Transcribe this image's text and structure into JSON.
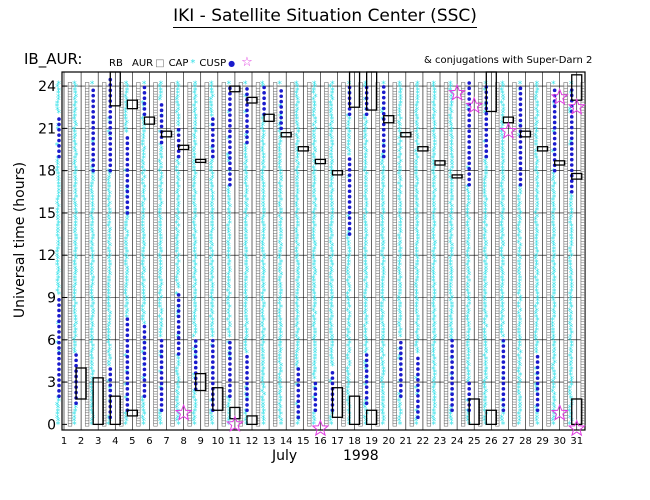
{
  "page": {
    "title": "IKI - Satellite Situation Center (SSC)",
    "panel_name": "IB_AUR:",
    "conjugation_note": "& conjugations with Super-Darn 2"
  },
  "legend": [
    {
      "label": "RB",
      "symbol": "rectangle",
      "color": "#000000"
    },
    {
      "label": "AUR",
      "symbol": "square",
      "color": "#777777"
    },
    {
      "label": "CAP",
      "symbol": "asterisk",
      "color": "#33e0e8"
    },
    {
      "label": "CUSP",
      "symbol": "dot",
      "color": "#1a1acc"
    },
    {
      "label": "",
      "symbol": "star",
      "color": "#e03ce0"
    }
  ],
  "chart_data": {
    "type": "scatter",
    "ylabel": "Universal time (hours)",
    "xlabel_month": "July",
    "xlabel_year": "1998",
    "x_ticks": [
      "1",
      "2",
      "3",
      "4",
      "5",
      "6",
      "7",
      "8",
      "9",
      "10",
      "11",
      "12",
      "13",
      "14",
      "15",
      "16",
      "17",
      "18",
      "19",
      "20",
      "21",
      "22",
      "23",
      "24",
      "25",
      "26",
      "27",
      "28",
      "29",
      "30",
      "31"
    ],
    "y_ticks": [
      0,
      3,
      6,
      9,
      12,
      15,
      18,
      21,
      24
    ],
    "xlim": [
      1,
      31.6
    ],
    "ylim": [
      -0.4,
      25
    ],
    "grid": true,
    "colors": {
      "rb": "#000000",
      "aur": "#777777",
      "cap": "#33e0e8",
      "cusp": "#1a1acc",
      "star": "#e03ce0"
    },
    "rb_intervals": [
      {
        "day": 2,
        "start": 1.8,
        "end": 4.0
      },
      {
        "day": 3,
        "start": 0.0,
        "end": 3.3
      },
      {
        "day": 4,
        "start": 0.0,
        "end": 2.0
      },
      {
        "day": 4,
        "start": 22.6,
        "end": 25.0
      },
      {
        "day": 5,
        "start": 0.6,
        "end": 1.0
      },
      {
        "day": 5,
        "start": 22.4,
        "end": 23.0
      },
      {
        "day": 6,
        "start": 21.3,
        "end": 21.8
      },
      {
        "day": 7,
        "start": 20.4,
        "end": 20.8
      },
      {
        "day": 8,
        "start": 19.5,
        "end": 19.8
      },
      {
        "day": 9,
        "start": 2.4,
        "end": 3.6
      },
      {
        "day": 9,
        "start": 18.6,
        "end": 18.8
      },
      {
        "day": 10,
        "start": 1.0,
        "end": 2.6
      },
      {
        "day": 11,
        "start": 0.4,
        "end": 1.2
      },
      {
        "day": 11,
        "start": 23.6,
        "end": 24.0
      },
      {
        "day": 12,
        "start": 0.0,
        "end": 0.6
      },
      {
        "day": 12,
        "start": 22.8,
        "end": 23.2
      },
      {
        "day": 13,
        "start": 21.5,
        "end": 22.0
      },
      {
        "day": 14,
        "start": 20.4,
        "end": 20.7
      },
      {
        "day": 15,
        "start": 19.4,
        "end": 19.7
      },
      {
        "day": 16,
        "start": 18.5,
        "end": 18.8
      },
      {
        "day": 17,
        "start": 0.5,
        "end": 2.6
      },
      {
        "day": 17,
        "start": 17.7,
        "end": 18.0
      },
      {
        "day": 18,
        "start": 0.0,
        "end": 2.0
      },
      {
        "day": 18,
        "start": 22.5,
        "end": 25.0
      },
      {
        "day": 19,
        "start": 0.0,
        "end": 1.0
      },
      {
        "day": 19,
        "start": 22.3,
        "end": 25.0
      },
      {
        "day": 20,
        "start": 21.4,
        "end": 21.9
      },
      {
        "day": 21,
        "start": 20.4,
        "end": 20.7
      },
      {
        "day": 22,
        "start": 19.4,
        "end": 19.7
      },
      {
        "day": 23,
        "start": 18.4,
        "end": 18.7
      },
      {
        "day": 24,
        "start": 17.5,
        "end": 17.7
      },
      {
        "day": 25,
        "start": 0.0,
        "end": 1.8
      },
      {
        "day": 26,
        "start": 0.0,
        "end": 1.0
      },
      {
        "day": 26,
        "start": 22.2,
        "end": 25.0
      },
      {
        "day": 27,
        "start": 21.4,
        "end": 21.8
      },
      {
        "day": 28,
        "start": 20.4,
        "end": 20.8
      },
      {
        "day": 29,
        "start": 19.4,
        "end": 19.7
      },
      {
        "day": 30,
        "start": 18.4,
        "end": 18.7
      },
      {
        "day": 31,
        "start": 0.0,
        "end": 1.8
      },
      {
        "day": 31,
        "start": 17.4,
        "end": 17.8
      },
      {
        "day": 31,
        "start": 23.0,
        "end": 24.8
      }
    ],
    "cusp_intervals": [
      {
        "day": 1,
        "start": 2.0,
        "end": 9.0
      },
      {
        "day": 1,
        "start": 19.0,
        "end": 22.0
      },
      {
        "day": 2,
        "start": 1.5,
        "end": 5.0
      },
      {
        "day": 3,
        "start": 18.0,
        "end": 24.0
      },
      {
        "day": 4,
        "start": 0.5,
        "end": 4.0
      },
      {
        "day": 4,
        "start": 18.0,
        "end": 24.5
      },
      {
        "day": 5,
        "start": 1.0,
        "end": 7.5
      },
      {
        "day": 5,
        "start": 15.0,
        "end": 20.5
      },
      {
        "day": 6,
        "start": 2.0,
        "end": 7.0
      },
      {
        "day": 6,
        "start": 22.0,
        "end": 24.0
      },
      {
        "day": 7,
        "start": 1.0,
        "end": 6.0
      },
      {
        "day": 7,
        "start": 20.0,
        "end": 23.0
      },
      {
        "day": 8,
        "start": 5.0,
        "end": 9.5
      },
      {
        "day": 8,
        "start": 19.0,
        "end": 21.0
      },
      {
        "day": 9,
        "start": 2.5,
        "end": 6.0
      },
      {
        "day": 10,
        "start": 1.0,
        "end": 6.0
      },
      {
        "day": 10,
        "start": 19.0,
        "end": 22.0
      },
      {
        "day": 11,
        "start": 2.0,
        "end": 6.0
      },
      {
        "day": 11,
        "start": 17.0,
        "end": 24.0
      },
      {
        "day": 12,
        "start": 1.0,
        "end": 5.0
      },
      {
        "day": 12,
        "start": 20.0,
        "end": 24.0
      },
      {
        "day": 13,
        "start": 22.0,
        "end": 24.0
      },
      {
        "day": 14,
        "start": 21.0,
        "end": 24.0
      },
      {
        "day": 15,
        "start": 0.5,
        "end": 4.0
      },
      {
        "day": 16,
        "start": 1.0,
        "end": 3.0
      },
      {
        "day": 17,
        "start": 1.0,
        "end": 4.0
      },
      {
        "day": 18,
        "start": 13.5,
        "end": 19.0
      },
      {
        "day": 18,
        "start": 22.0,
        "end": 24.0
      },
      {
        "day": 19,
        "start": 1.5,
        "end": 5.0
      },
      {
        "day": 19,
        "start": 22.0,
        "end": 24.0
      },
      {
        "day": 20,
        "start": 19.0,
        "end": 24.0
      },
      {
        "day": 21,
        "start": 2.0,
        "end": 6.0
      },
      {
        "day": 22,
        "start": 0.5,
        "end": 5.0
      },
      {
        "day": 24,
        "start": 1.0,
        "end": 6.0
      },
      {
        "day": 25,
        "start": 1.0,
        "end": 3.0
      },
      {
        "day": 25,
        "start": 17.0,
        "end": 24.5
      },
      {
        "day": 26,
        "start": 19.0,
        "end": 24.0
      },
      {
        "day": 27,
        "start": 1.0,
        "end": 6.0
      },
      {
        "day": 28,
        "start": 17.0,
        "end": 24.0
      },
      {
        "day": 29,
        "start": 1.0,
        "end": 5.0
      },
      {
        "day": 30,
        "start": 18.0,
        "end": 24.0
      },
      {
        "day": 31,
        "start": 16.5,
        "end": 24.0
      }
    ],
    "stars": [
      {
        "day": 8,
        "time": 0.8
      },
      {
        "day": 11,
        "time": 0.0
      },
      {
        "day": 16,
        "time": -0.3
      },
      {
        "day": 24,
        "time": 23.5
      },
      {
        "day": 25,
        "time": 22.6
      },
      {
        "day": 27,
        "time": 20.8
      },
      {
        "day": 30,
        "time": 0.8
      },
      {
        "day": 30,
        "time": 23.2
      },
      {
        "day": 31,
        "time": -0.3
      },
      {
        "day": 31,
        "time": 22.5
      }
    ]
  }
}
